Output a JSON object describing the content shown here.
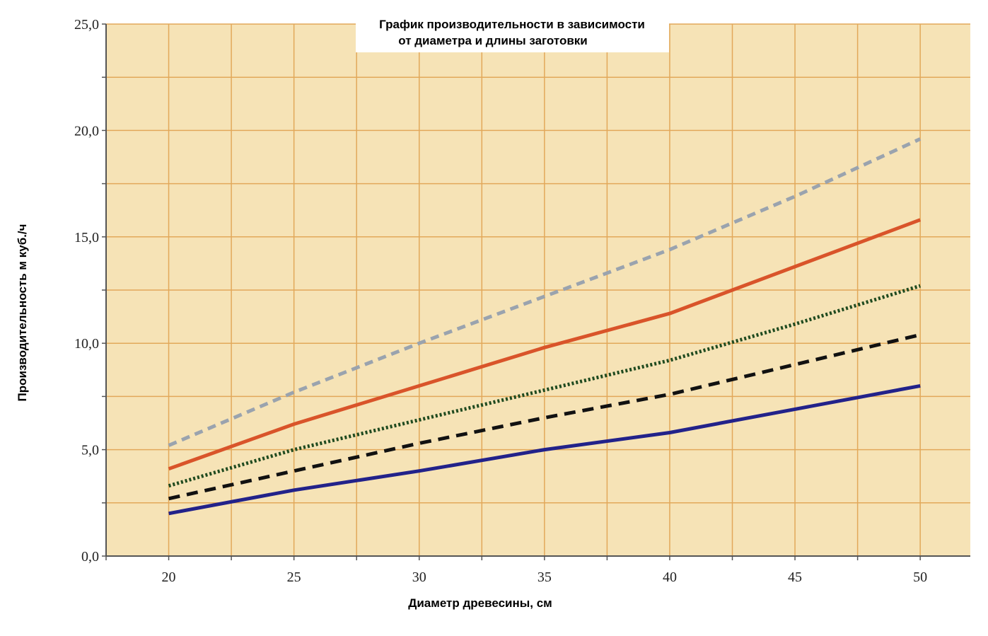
{
  "chart_data": {
    "type": "line",
    "title_line1": "График производительности в зависимости",
    "title_line2": "от диаметра и длины заготовки",
    "xlabel": "Диаметр древесины, см",
    "ylabel": "Производительность м куб./ч",
    "x": [
      20,
      25,
      30,
      35,
      40,
      45,
      50
    ],
    "xlim": [
      17.5,
      52
    ],
    "ylim": [
      0,
      25
    ],
    "x_ticks": [
      "20",
      "25",
      "30",
      "35",
      "40",
      "45",
      "50"
    ],
    "y_ticks": [
      {
        "value": 0,
        "label": "0,0"
      },
      {
        "value": 5,
        "label": "5,0"
      },
      {
        "value": 10,
        "label": "10,0"
      },
      {
        "value": 15,
        "label": "15,0"
      },
      {
        "value": 20,
        "label": "20,0"
      },
      {
        "value": 25,
        "label": "25,0"
      }
    ],
    "grid": true,
    "series": [
      {
        "style": "dashed-light",
        "color": "#9aa3ae",
        "values": [
          5.2,
          7.7,
          10.0,
          12.2,
          14.4,
          16.9,
          19.6
        ]
      },
      {
        "style": "solid",
        "color": "#d9542a",
        "values": [
          4.1,
          6.2,
          8.0,
          9.8,
          11.4,
          13.6,
          15.8
        ]
      },
      {
        "style": "dotted",
        "color": "#1f4a1f",
        "values": [
          3.3,
          5.0,
          6.4,
          7.8,
          9.2,
          10.9,
          12.7
        ]
      },
      {
        "style": "dashed",
        "color": "#111111",
        "values": [
          2.7,
          4.0,
          5.3,
          6.5,
          7.6,
          9.0,
          10.4
        ]
      },
      {
        "style": "solid",
        "color": "#22228a",
        "values": [
          2.0,
          3.1,
          4.0,
          5.0,
          5.8,
          6.9,
          8.0
        ]
      }
    ],
    "colors": {
      "plot_background": "#f6e3b6",
      "grid": "#e2a85a",
      "axis": "#555555"
    }
  }
}
